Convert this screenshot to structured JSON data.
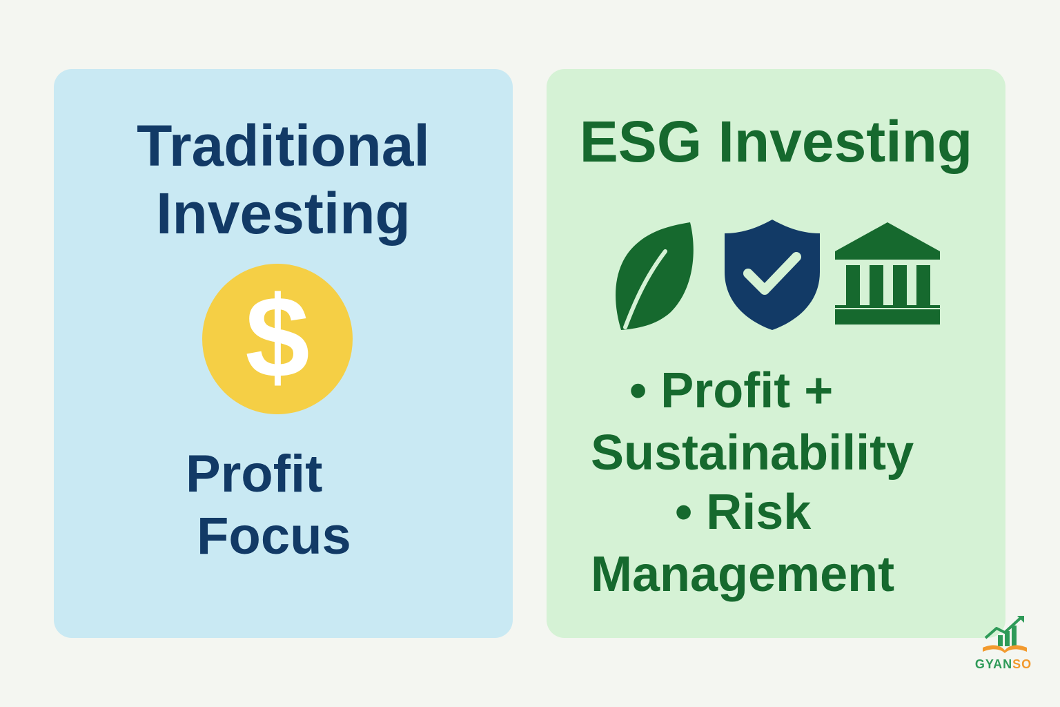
{
  "left_card": {
    "title_line1": "Traditional",
    "title_line2": "Investing",
    "coin_symbol": "$",
    "text_line1": "Profit",
    "text_line2": "Focus"
  },
  "right_card": {
    "title": "ESG Investing",
    "icons": [
      "leaf-icon",
      "shield-check-icon",
      "bank-icon"
    ],
    "lines": [
      "• Profit +",
      "Sustainability",
      "• Risk",
      "Management"
    ]
  },
  "logo": {
    "text_main": "GYAN",
    "text_accent": "SO"
  },
  "colors": {
    "background": "#f4f6f1",
    "left_card": "#c9e9f3",
    "right_card": "#d5f2d5",
    "navy": "#123a66",
    "green": "#16692e",
    "coin": "#f5cf45"
  }
}
